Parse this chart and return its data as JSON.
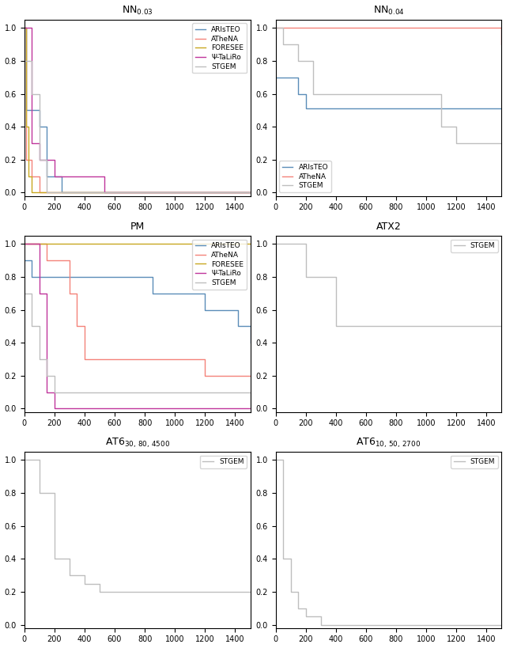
{
  "subplots": [
    {
      "title_main": "NN",
      "title_sub": "0.03",
      "legend_loc": "upper right",
      "series": [
        {
          "label": "ARIsTEO",
          "color": "#5B8DB8",
          "x": [
            0,
            10,
            50,
            100,
            150,
            200,
            250,
            1500
          ],
          "y": [
            1.0,
            0.5,
            0.5,
            0.4,
            0.1,
            0.1,
            0.0,
            0.0
          ]
        },
        {
          "label": "ATheNA",
          "color": "#F4837A",
          "x": [
            0,
            10,
            30,
            50,
            100,
            1500
          ],
          "y": [
            1.0,
            0.2,
            0.2,
            0.1,
            0.0,
            0.0
          ]
        },
        {
          "label": "FORESEE",
          "color": "#C8A820",
          "x": [
            0,
            10,
            30,
            50,
            1500
          ],
          "y": [
            1.0,
            0.4,
            0.1,
            0.0,
            0.0
          ]
        },
        {
          "label": "Ψ-TaLiRo",
          "color": "#C0369C",
          "x": [
            0,
            50,
            100,
            150,
            200,
            250,
            300,
            500,
            530,
            1500
          ],
          "y": [
            1.0,
            0.3,
            0.2,
            0.2,
            0.1,
            0.1,
            0.1,
            0.1,
            0.0,
            0.0
          ]
        },
        {
          "label": "STGEM",
          "color": "#BEBEBE",
          "x": [
            0,
            50,
            100,
            150,
            1500
          ],
          "y": [
            0.8,
            0.6,
            0.2,
            0.0,
            0.0
          ]
        }
      ],
      "xlim": [
        0,
        1500
      ],
      "ylim": [
        -0.02,
        1.05
      ],
      "xticks": [
        0,
        200,
        400,
        600,
        800,
        1000,
        1200,
        1400
      ]
    },
    {
      "title_main": "NN",
      "title_sub": "0.04",
      "legend_loc": "lower left",
      "series": [
        {
          "label": "ARIsTEO",
          "color": "#5B8DB8",
          "x": [
            0,
            100,
            150,
            200,
            900,
            1100,
            1500
          ],
          "y": [
            0.7,
            0.7,
            0.6,
            0.51,
            0.51,
            0.51,
            0.51
          ]
        },
        {
          "label": "ATheNA",
          "color": "#F4837A",
          "x": [
            0,
            1400,
            1500
          ],
          "y": [
            1.0,
            1.0,
            0.9
          ]
        },
        {
          "label": "STGEM",
          "color": "#BEBEBE",
          "x": [
            0,
            50,
            150,
            250,
            900,
            1100,
            1200,
            1500
          ],
          "y": [
            1.0,
            0.9,
            0.8,
            0.6,
            0.6,
            0.4,
            0.3,
            0.3
          ]
        }
      ],
      "xlim": [
        0,
        1500
      ],
      "ylim": [
        -0.02,
        1.05
      ],
      "xticks": [
        0,
        200,
        400,
        600,
        800,
        1000,
        1200,
        1400
      ]
    },
    {
      "title_main": "PM",
      "title_sub": "",
      "legend_loc": "upper right",
      "series": [
        {
          "label": "ARIsTEO",
          "color": "#5B8DB8",
          "x": [
            0,
            50,
            100,
            820,
            850,
            1200,
            1350,
            1420,
            1500
          ],
          "y": [
            0.9,
            0.8,
            0.8,
            0.8,
            0.7,
            0.6,
            0.6,
            0.5,
            0.4
          ]
        },
        {
          "label": "ATheNA",
          "color": "#F4837A",
          "x": [
            0,
            100,
            150,
            240,
            300,
            350,
            400,
            500,
            800,
            1200,
            1300,
            1400,
            1500
          ],
          "y": [
            1.0,
            1.0,
            0.9,
            0.9,
            0.7,
            0.5,
            0.3,
            0.3,
            0.3,
            0.2,
            0.2,
            0.2,
            0.2
          ]
        },
        {
          "label": "FORESEE",
          "color": "#C8A820",
          "x": [
            0,
            1500
          ],
          "y": [
            1.0,
            1.0
          ]
        },
        {
          "label": "Ψ-TaLiRo",
          "color": "#C0369C",
          "x": [
            0,
            100,
            150,
            200,
            1500
          ],
          "y": [
            1.0,
            0.7,
            0.1,
            0.0,
            0.0
          ]
        },
        {
          "label": "STGEM",
          "color": "#BEBEBE",
          "x": [
            0,
            50,
            100,
            150,
            200,
            250,
            1020,
            1500
          ],
          "y": [
            0.7,
            0.5,
            0.3,
            0.2,
            0.1,
            0.1,
            0.1,
            0.0
          ]
        }
      ],
      "xlim": [
        0,
        1500
      ],
      "ylim": [
        -0.02,
        1.05
      ],
      "xticks": [
        0,
        200,
        400,
        600,
        800,
        1000,
        1200,
        1400
      ]
    },
    {
      "title_main": "ATX2",
      "title_sub": "",
      "legend_loc": "upper right",
      "series": [
        {
          "label": "STGEM",
          "color": "#BEBEBE",
          "x": [
            0,
            200,
            400,
            1500
          ],
          "y": [
            1.0,
            0.8,
            0.5,
            0.5
          ]
        }
      ],
      "xlim": [
        0,
        1500
      ],
      "ylim": [
        -0.02,
        1.05
      ],
      "xticks": [
        0,
        200,
        400,
        600,
        800,
        1000,
        1200,
        1400
      ]
    },
    {
      "title_main": "AT6",
      "title_sub": "30,\\,80,\\,4500",
      "legend_loc": "upper right",
      "series": [
        {
          "label": "STGEM",
          "color": "#BEBEBE",
          "x": [
            0,
            100,
            200,
            300,
            400,
            500,
            700,
            1500
          ],
          "y": [
            1.0,
            0.8,
            0.4,
            0.3,
            0.25,
            0.2,
            0.2,
            0.2
          ]
        }
      ],
      "xlim": [
        0,
        1500
      ],
      "ylim": [
        -0.02,
        1.05
      ],
      "xticks": [
        0,
        200,
        400,
        600,
        800,
        1000,
        1200,
        1400
      ]
    },
    {
      "title_main": "AT6",
      "title_sub": "10,\\,50,\\,2700",
      "legend_loc": "upper right",
      "series": [
        {
          "label": "STGEM",
          "color": "#BEBEBE",
          "x": [
            0,
            50,
            100,
            150,
            200,
            300,
            1500
          ],
          "y": [
            1.0,
            0.4,
            0.2,
            0.1,
            0.05,
            0.0,
            0.0
          ]
        }
      ],
      "xlim": [
        0,
        1500
      ],
      "ylim": [
        -0.02,
        1.05
      ],
      "xticks": [
        0,
        200,
        400,
        600,
        800,
        1000,
        1200,
        1400
      ]
    }
  ],
  "fig_width": 6.4,
  "fig_height": 8.19,
  "dpi": 100
}
